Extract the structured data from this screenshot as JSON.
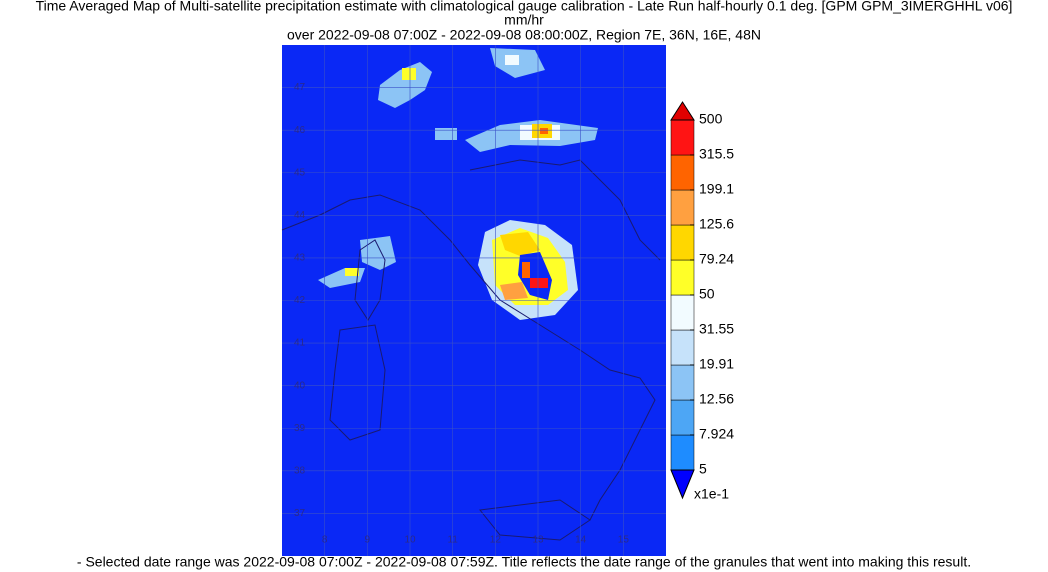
{
  "title": "Time Averaged Map of Multi-satellite precipitation estimate with climatological gauge calibration - Late Run half-hourly 0.1 deg. [GPM GPM_3IMERGHHL v06]",
  "units": "mm/hr",
  "subtitle": "over 2022-09-08 07:00Z - 2022-09-08 08:00:00Z, Region 7E, 36N, 16E, 48N",
  "map": {
    "lon_range": [
      7,
      16
    ],
    "lat_range": [
      36,
      48
    ],
    "lon_ticks": [
      8,
      9,
      10,
      11,
      12,
      13,
      14,
      15
    ],
    "lat_ticks": [
      37,
      38,
      39,
      40,
      41,
      42,
      43,
      44,
      45,
      46,
      47
    ]
  },
  "colorbar": {
    "boundaries": [
      {
        "value": 5,
        "label": "5"
      },
      {
        "value": 7.924,
        "label": "7.924"
      },
      {
        "value": 12.56,
        "label": "12.56"
      },
      {
        "value": 19.91,
        "label": "19.91"
      },
      {
        "value": 31.55,
        "label": "31.55"
      },
      {
        "value": 50,
        "label": "50"
      },
      {
        "value": 79.24,
        "label": "79.24"
      },
      {
        "value": 125.6,
        "label": "125.6"
      },
      {
        "value": 199.1,
        "label": "199.1"
      },
      {
        "value": 315.5,
        "label": "315.5"
      },
      {
        "value": 500,
        "label": "500"
      }
    ],
    "colors": [
      "#1e8cff",
      "#4da6f5",
      "#8cc4f5",
      "#c6e2fa",
      "#f2fbff",
      "#ffff28",
      "#ffd700",
      "#ffa040",
      "#ff6400",
      "#ff1414"
    ],
    "under_color": "#0000ff",
    "over_color": "#e00000",
    "scale_label": "x1e-1"
  },
  "footer": "- Selected date range was 2022-09-08 07:00Z - 2022-09-08 07:59Z. Title reflects the date range of the granules that went into making this result."
}
